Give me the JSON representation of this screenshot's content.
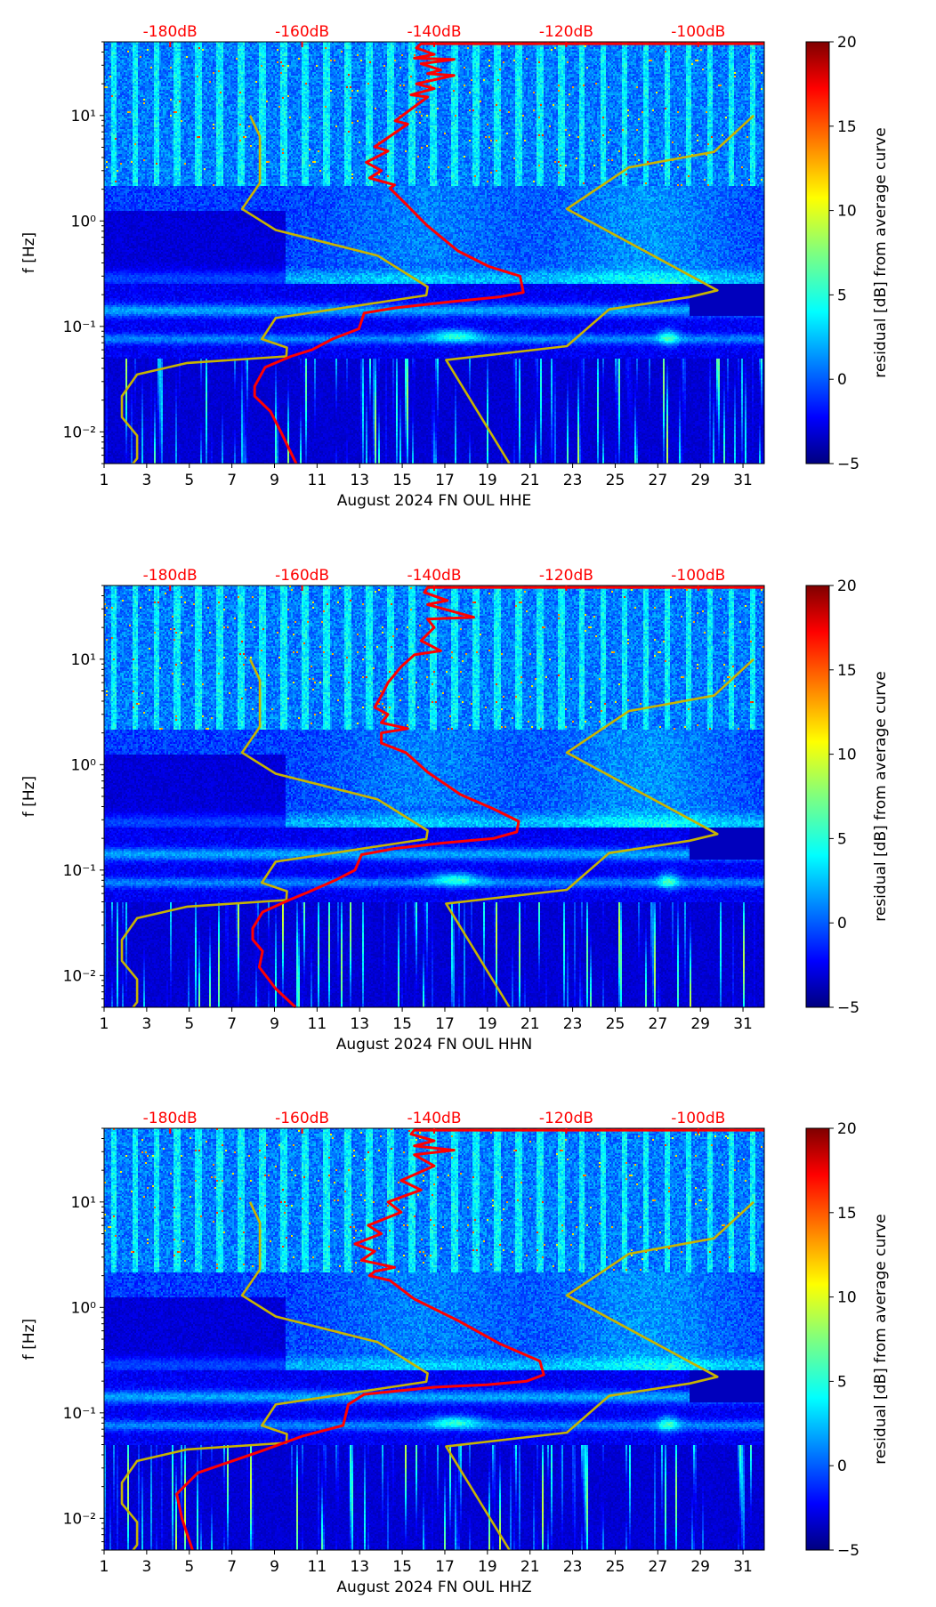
{
  "chart_data": [
    {
      "type": "heatmap",
      "title": "",
      "xlabel": "August 2024 FN OUL  HHE",
      "ylabel": "f [Hz]",
      "colorbar_label": "residual [dB] from average curve",
      "xlim": [
        1,
        32
      ],
      "ylim": [
        0.005,
        50
      ],
      "yscale": "log",
      "x_ticks": [
        1,
        3,
        5,
        7,
        9,
        11,
        13,
        15,
        17,
        19,
        21,
        23,
        25,
        27,
        29,
        31
      ],
      "y_ticks": [
        {
          "value": 0.01,
          "label": "10⁻²"
        },
        {
          "value": 0.1,
          "label": "10⁻¹"
        },
        {
          "value": 1,
          "label": "10⁰"
        },
        {
          "value": 10,
          "label": "10¹"
        }
      ],
      "top_axis": {
        "range_db": [
          -190,
          -90
        ],
        "ticks": [
          {
            "value": -180,
            "label": "-180dB"
          },
          {
            "value": -160,
            "label": "-160dB"
          },
          {
            "value": -140,
            "label": "-140dB"
          },
          {
            "value": -120,
            "label": "-120dB"
          },
          {
            "value": -100,
            "label": "-100dB"
          }
        ]
      },
      "colorbar": {
        "range": [
          -5,
          20
        ],
        "ticks": [
          {
            "value": -5,
            "label": "−5"
          },
          {
            "value": 0,
            "label": "0"
          },
          {
            "value": 5,
            "label": "5"
          },
          {
            "value": 10,
            "label": "10"
          },
          {
            "value": 15,
            "label": "15"
          },
          {
            "value": 20,
            "label": "20"
          }
        ]
      },
      "red_curve": {
        "name": "average PSD",
        "color": "#ff0000",
        "points_db_freq": [
          [
            -90,
            48
          ],
          [
            -142,
            48
          ],
          [
            -142.7,
            43.7
          ],
          [
            -140,
            38
          ],
          [
            -143,
            35
          ],
          [
            -137,
            34
          ],
          [
            -142,
            31
          ],
          [
            -139,
            27
          ],
          [
            -141,
            25
          ],
          [
            -137,
            24
          ],
          [
            -142.7,
            20
          ],
          [
            -140,
            18
          ],
          [
            -143.5,
            15.7
          ],
          [
            -141,
            15
          ],
          [
            -145.9,
            8.9
          ],
          [
            -144,
            8.3
          ],
          [
            -149,
            5.06
          ],
          [
            -147,
            4.6
          ],
          [
            -150.3,
            3.6
          ],
          [
            -148,
            3.0
          ],
          [
            -149.8,
            2.56
          ],
          [
            -146,
            2.2
          ],
          [
            -146.7,
            2.04
          ],
          [
            -144.3,
            1.45
          ],
          [
            -141.2,
            0.92
          ],
          [
            -136.4,
            0.52
          ],
          [
            -131.7,
            0.37
          ],
          [
            -127,
            0.3
          ],
          [
            -126.5,
            0.21
          ],
          [
            -130.2,
            0.19
          ],
          [
            -138,
            0.17
          ],
          [
            -145.9,
            0.15
          ],
          [
            -150.6,
            0.134
          ],
          [
            -151.4,
            0.095
          ],
          [
            -155.4,
            0.076
          ],
          [
            -158.5,
            0.06
          ],
          [
            -161.7,
            0.052
          ],
          [
            -165.6,
            0.041
          ],
          [
            -167.2,
            0.027
          ],
          [
            -167.2,
            0.0218
          ],
          [
            -164.8,
            0.0156
          ],
          [
            -163.2,
            0.0099
          ],
          [
            -160.9,
            0.0049
          ]
        ]
      },
      "nlnm": {
        "name": "NLNM",
        "color": "#c8b400",
        "points_db_freq": [
          [
            -167.9,
            10
          ],
          [
            -166.4,
            6.35
          ],
          [
            -166.4,
            2.29
          ],
          [
            -169.1,
            1.3
          ],
          [
            -164.0,
            0.82
          ],
          [
            -148.6,
            0.47
          ],
          [
            -141.0,
            0.237
          ],
          [
            -141.2,
            0.197
          ],
          [
            -164.0,
            0.12
          ],
          [
            -166.1,
            0.076
          ],
          [
            -162.3,
            0.063
          ],
          [
            -162.4,
            0.052
          ],
          [
            -177.4,
            0.045
          ],
          [
            -185.0,
            0.035
          ],
          [
            -187.3,
            0.0218
          ],
          [
            -187.3,
            0.0138
          ],
          [
            -185.0,
            0.0092
          ],
          [
            -185.0,
            0.0056
          ],
          [
            -185.6,
            0.0049
          ]
        ]
      },
      "nhnm": {
        "name": "NHNM",
        "color": "#c8b400",
        "points_db_freq": [
          [
            -91.6,
            10
          ],
          [
            -97.6,
            4.52
          ],
          [
            -110.5,
            3.22
          ],
          [
            -119.9,
            1.3
          ],
          [
            -97.1,
            0.22
          ],
          [
            -101.3,
            0.19
          ],
          [
            -113.5,
            0.145
          ],
          [
            -119.9,
            0.065
          ],
          [
            -138.2,
            0.048
          ],
          [
            -128.6,
            0.0049
          ]
        ]
      }
    },
    {
      "type": "heatmap",
      "title": "",
      "xlabel": "August 2024 FN OUL  HHN",
      "ylabel": "f [Hz]",
      "colorbar_label": "residual [dB] from average curve",
      "xlim": [
        1,
        32
      ],
      "ylim": [
        0.005,
        50
      ],
      "yscale": "log",
      "x_ticks": [
        1,
        3,
        5,
        7,
        9,
        11,
        13,
        15,
        17,
        19,
        21,
        23,
        25,
        27,
        29,
        31
      ],
      "y_ticks": [
        {
          "value": 0.01,
          "label": "10⁻²"
        },
        {
          "value": 0.1,
          "label": "10⁻¹"
        },
        {
          "value": 1,
          "label": "10⁰"
        },
        {
          "value": 10,
          "label": "10¹"
        }
      ],
      "top_axis": {
        "range_db": [
          -190,
          -90
        ],
        "ticks": [
          {
            "value": -180,
            "label": "-180dB"
          },
          {
            "value": -160,
            "label": "-160dB"
          },
          {
            "value": -140,
            "label": "-140dB"
          },
          {
            "value": -120,
            "label": "-120dB"
          },
          {
            "value": -100,
            "label": "-100dB"
          }
        ]
      },
      "colorbar": {
        "range": [
          -5,
          20
        ],
        "ticks": [
          {
            "value": -5,
            "label": "−5"
          },
          {
            "value": 0,
            "label": "0"
          },
          {
            "value": 5,
            "label": "5"
          },
          {
            "value": 10,
            "label": "10"
          },
          {
            "value": 15,
            "label": "15"
          },
          {
            "value": 20,
            "label": "20"
          }
        ]
      },
      "red_curve": {
        "name": "average PSD",
        "color": "#ff0000",
        "points_db_freq": [
          [
            -90,
            48
          ],
          [
            -141,
            48
          ],
          [
            -141.5,
            43
          ],
          [
            -138,
            36
          ],
          [
            -141,
            33
          ],
          [
            -134,
            25
          ],
          [
            -141,
            24
          ],
          [
            -140,
            20
          ],
          [
            -142,
            15
          ],
          [
            -139,
            12
          ],
          [
            -143,
            11
          ],
          [
            -145,
            8.5
          ],
          [
            -147,
            6.0
          ],
          [
            -148,
            4.5
          ],
          [
            -149,
            3.5
          ],
          [
            -147,
            3.0
          ],
          [
            -148,
            2.5
          ],
          [
            -144,
            2.2
          ],
          [
            -148,
            2.0
          ],
          [
            -148,
            1.6
          ],
          [
            -144.3,
            1.3
          ],
          [
            -141,
            0.85
          ],
          [
            -136,
            0.52
          ],
          [
            -131,
            0.38
          ],
          [
            -127.2,
            0.29
          ],
          [
            -127.5,
            0.23
          ],
          [
            -131,
            0.2
          ],
          [
            -139,
            0.18
          ],
          [
            -146,
            0.16
          ],
          [
            -151,
            0.14
          ],
          [
            -152,
            0.1
          ],
          [
            -155,
            0.08
          ],
          [
            -159,
            0.062
          ],
          [
            -162,
            0.052
          ],
          [
            -166,
            0.04
          ],
          [
            -167.5,
            0.028
          ],
          [
            -167.5,
            0.022
          ],
          [
            -166,
            0.017
          ],
          [
            -166.5,
            0.012
          ],
          [
            -164,
            0.0075
          ],
          [
            -161,
            0.0049
          ]
        ]
      },
      "nlnm": {
        "name": "NLNM",
        "color": "#c8b400",
        "points_db_freq": [
          [
            -167.9,
            10
          ],
          [
            -166.4,
            6.35
          ],
          [
            -166.4,
            2.29
          ],
          [
            -169.1,
            1.3
          ],
          [
            -164.0,
            0.82
          ],
          [
            -148.6,
            0.47
          ],
          [
            -141.0,
            0.237
          ],
          [
            -141.2,
            0.197
          ],
          [
            -164.0,
            0.12
          ],
          [
            -166.1,
            0.076
          ],
          [
            -162.3,
            0.063
          ],
          [
            -162.4,
            0.052
          ],
          [
            -177.4,
            0.045
          ],
          [
            -185.0,
            0.035
          ],
          [
            -187.3,
            0.0218
          ],
          [
            -187.3,
            0.0138
          ],
          [
            -185.0,
            0.0092
          ],
          [
            -185.0,
            0.0056
          ],
          [
            -185.6,
            0.0049
          ]
        ]
      },
      "nhnm": {
        "name": "NHNM",
        "color": "#c8b400",
        "points_db_freq": [
          [
            -91.6,
            10
          ],
          [
            -97.6,
            4.52
          ],
          [
            -110.5,
            3.22
          ],
          [
            -119.9,
            1.3
          ],
          [
            -97.1,
            0.22
          ],
          [
            -101.3,
            0.19
          ],
          [
            -113.5,
            0.145
          ],
          [
            -119.9,
            0.065
          ],
          [
            -138.2,
            0.048
          ],
          [
            -128.6,
            0.0049
          ]
        ]
      }
    },
    {
      "type": "heatmap",
      "title": "",
      "xlabel": "August 2024 FN OUL  HHZ",
      "ylabel": "f [Hz]",
      "colorbar_label": "residual [dB] from average curve",
      "xlim": [
        1,
        32
      ],
      "ylim": [
        0.005,
        50
      ],
      "yscale": "log",
      "x_ticks": [
        1,
        3,
        5,
        7,
        9,
        11,
        13,
        15,
        17,
        19,
        21,
        23,
        25,
        27,
        29,
        31
      ],
      "y_ticks": [
        {
          "value": 0.01,
          "label": "10⁻²"
        },
        {
          "value": 0.1,
          "label": "10⁻¹"
        },
        {
          "value": 1,
          "label": "10⁰"
        },
        {
          "value": 10,
          "label": "10¹"
        }
      ],
      "top_axis": {
        "range_db": [
          -190,
          -90
        ],
        "ticks": [
          {
            "value": -180,
            "label": "-180dB"
          },
          {
            "value": -160,
            "label": "-160dB"
          },
          {
            "value": -140,
            "label": "-140dB"
          },
          {
            "value": -120,
            "label": "-120dB"
          },
          {
            "value": -100,
            "label": "-100dB"
          }
        ]
      },
      "colorbar": {
        "range": [
          -5,
          20
        ],
        "ticks": [
          {
            "value": -5,
            "label": "−5"
          },
          {
            "value": 0,
            "label": "0"
          },
          {
            "value": 5,
            "label": "5"
          },
          {
            "value": 10,
            "label": "10"
          },
          {
            "value": 15,
            "label": "15"
          },
          {
            "value": 20,
            "label": "20"
          }
        ]
      },
      "red_curve": {
        "name": "average PSD",
        "color": "#ff0000",
        "points_db_freq": [
          [
            -90,
            48
          ],
          [
            -143,
            48
          ],
          [
            -143.5,
            44
          ],
          [
            -140,
            38
          ],
          [
            -143,
            34
          ],
          [
            -137,
            31
          ],
          [
            -143,
            28
          ],
          [
            -140,
            22
          ],
          [
            -145,
            16
          ],
          [
            -142,
            13
          ],
          [
            -147,
            10
          ],
          [
            -145,
            8
          ],
          [
            -150,
            6
          ],
          [
            -148,
            5
          ],
          [
            -152,
            4
          ],
          [
            -149,
            3.4
          ],
          [
            -151,
            2.8
          ],
          [
            -146,
            2.4
          ],
          [
            -149,
            2.2
          ],
          [
            -149.8,
            2.0
          ],
          [
            -146.7,
            1.8
          ],
          [
            -143,
            1.2
          ],
          [
            -136.4,
            0.75
          ],
          [
            -130,
            0.45
          ],
          [
            -124,
            0.31
          ],
          [
            -123.4,
            0.23
          ],
          [
            -126,
            0.2
          ],
          [
            -132,
            0.185
          ],
          [
            -140,
            0.175
          ],
          [
            -150.6,
            0.15
          ],
          [
            -153,
            0.12
          ],
          [
            -153.8,
            0.076
          ],
          [
            -160,
            0.06
          ],
          [
            -166.4,
            0.043
          ],
          [
            -175.8,
            0.027
          ],
          [
            -179,
            0.017
          ],
          [
            -178.2,
            0.0099
          ],
          [
            -176.6,
            0.0049
          ]
        ]
      },
      "nlnm": {
        "name": "NLNM",
        "color": "#c8b400",
        "points_db_freq": [
          [
            -167.9,
            10
          ],
          [
            -166.4,
            6.35
          ],
          [
            -166.4,
            2.29
          ],
          [
            -169.1,
            1.3
          ],
          [
            -164.0,
            0.82
          ],
          [
            -148.6,
            0.47
          ],
          [
            -141.0,
            0.237
          ],
          [
            -141.2,
            0.197
          ],
          [
            -164.0,
            0.12
          ],
          [
            -166.1,
            0.076
          ],
          [
            -162.3,
            0.063
          ],
          [
            -162.4,
            0.052
          ],
          [
            -177.4,
            0.045
          ],
          [
            -185.0,
            0.035
          ],
          [
            -187.3,
            0.0218
          ],
          [
            -187.3,
            0.0138
          ],
          [
            -185.0,
            0.0092
          ],
          [
            -185.0,
            0.0056
          ],
          [
            -185.6,
            0.0049
          ]
        ]
      },
      "nhnm": {
        "name": "NHNM",
        "color": "#c8b400",
        "points_db_freq": [
          [
            -91.6,
            10
          ],
          [
            -97.6,
            4.52
          ],
          [
            -110.5,
            3.22
          ],
          [
            -119.9,
            1.3
          ],
          [
            -97.1,
            0.22
          ],
          [
            -101.3,
            0.19
          ],
          [
            -113.5,
            0.145
          ],
          [
            -119.9,
            0.065
          ],
          [
            -138.2,
            0.048
          ],
          [
            -128.6,
            0.0049
          ]
        ]
      }
    }
  ]
}
